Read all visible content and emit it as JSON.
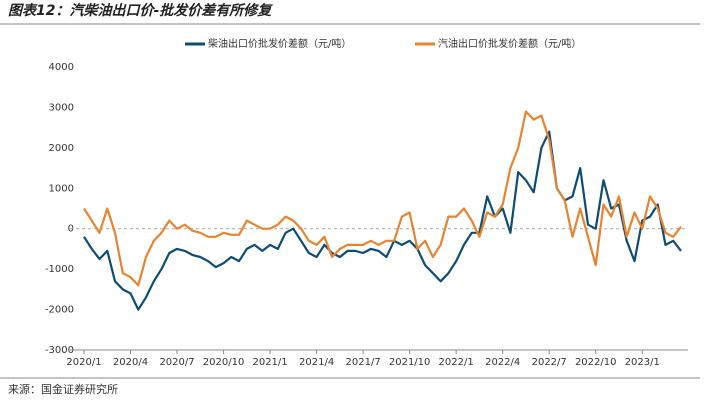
{
  "chart_data": {
    "type": "line",
    "title": "图表12：汽柴油出口价-批发价差有所修复",
    "source": "来源：国金证券研究所",
    "categories": [
      "2020/1",
      null,
      null,
      null,
      null,
      null,
      "2020/4",
      null,
      null,
      null,
      null,
      null,
      "2020/7",
      null,
      null,
      null,
      null,
      null,
      "2020/10",
      null,
      null,
      null,
      null,
      null,
      "2021/1",
      null,
      null,
      null,
      null,
      null,
      "2021/4",
      null,
      null,
      null,
      null,
      null,
      "2021/7",
      null,
      null,
      null,
      null,
      null,
      "2021/10",
      null,
      null,
      null,
      null,
      null,
      "2022/1",
      null,
      null,
      null,
      null,
      null,
      "2022/4",
      null,
      null,
      null,
      null,
      null,
      "2022/7",
      null,
      null,
      null,
      null,
      null,
      "2022/10",
      null,
      null,
      null,
      null,
      null,
      "2023/1",
      null,
      null,
      null,
      null,
      null
    ],
    "series": [
      {
        "name": "柴油出口价批发价差额（元/吨）",
        "color": "#0f4c73",
        "values": [
          -200,
          -500,
          -750,
          -550,
          -1300,
          -1500,
          -1600,
          -2000,
          -1700,
          -1300,
          -1000,
          -600,
          -500,
          -550,
          -650,
          -700,
          -800,
          -950,
          -850,
          -700,
          -800,
          -500,
          -400,
          -550,
          -400,
          -500,
          -100,
          0,
          -300,
          -600,
          -700,
          -400,
          -600,
          -700,
          -550,
          -550,
          -600,
          -500,
          -550,
          -700,
          -300,
          -400,
          -300,
          -500,
          -900,
          -1100,
          -1300,
          -1100,
          -800,
          -400,
          -100,
          -100,
          800,
          300,
          500,
          -100,
          1400,
          1200,
          900,
          2000,
          2400,
          1000,
          700,
          800,
          1500,
          100,
          0,
          1200,
          500,
          600,
          -300,
          -800,
          200,
          300,
          600,
          -400,
          -300,
          -550
        ]
      },
      {
        "name": "汽油出口价批发价差额（元/吨）",
        "color": "#e8832f",
        "values": [
          500,
          200,
          -100,
          500,
          -100,
          -1100,
          -1200,
          -1400,
          -700,
          -300,
          -100,
          200,
          0,
          100,
          -50,
          -100,
          -200,
          -200,
          -100,
          -150,
          -150,
          200,
          100,
          0,
          0,
          100,
          300,
          200,
          0,
          -300,
          -400,
          -200,
          -700,
          -500,
          -400,
          -400,
          -400,
          -300,
          -400,
          -300,
          -300,
          300,
          400,
          -500,
          -300,
          -700,
          -400,
          300,
          300,
          500,
          200,
          -200,
          400,
          300,
          600,
          1500,
          2000,
          2900,
          2700,
          2800,
          2200,
          1000,
          700,
          -200,
          500,
          -200,
          -900,
          600,
          300,
          800,
          -200,
          400,
          0,
          800,
          500,
          -100,
          -200,
          50
        ]
      }
    ],
    "ylim": [
      -3000,
      4000
    ],
    "yticks": [
      -3000,
      -2000,
      -1000,
      0,
      1000,
      2000,
      3000,
      4000
    ]
  }
}
